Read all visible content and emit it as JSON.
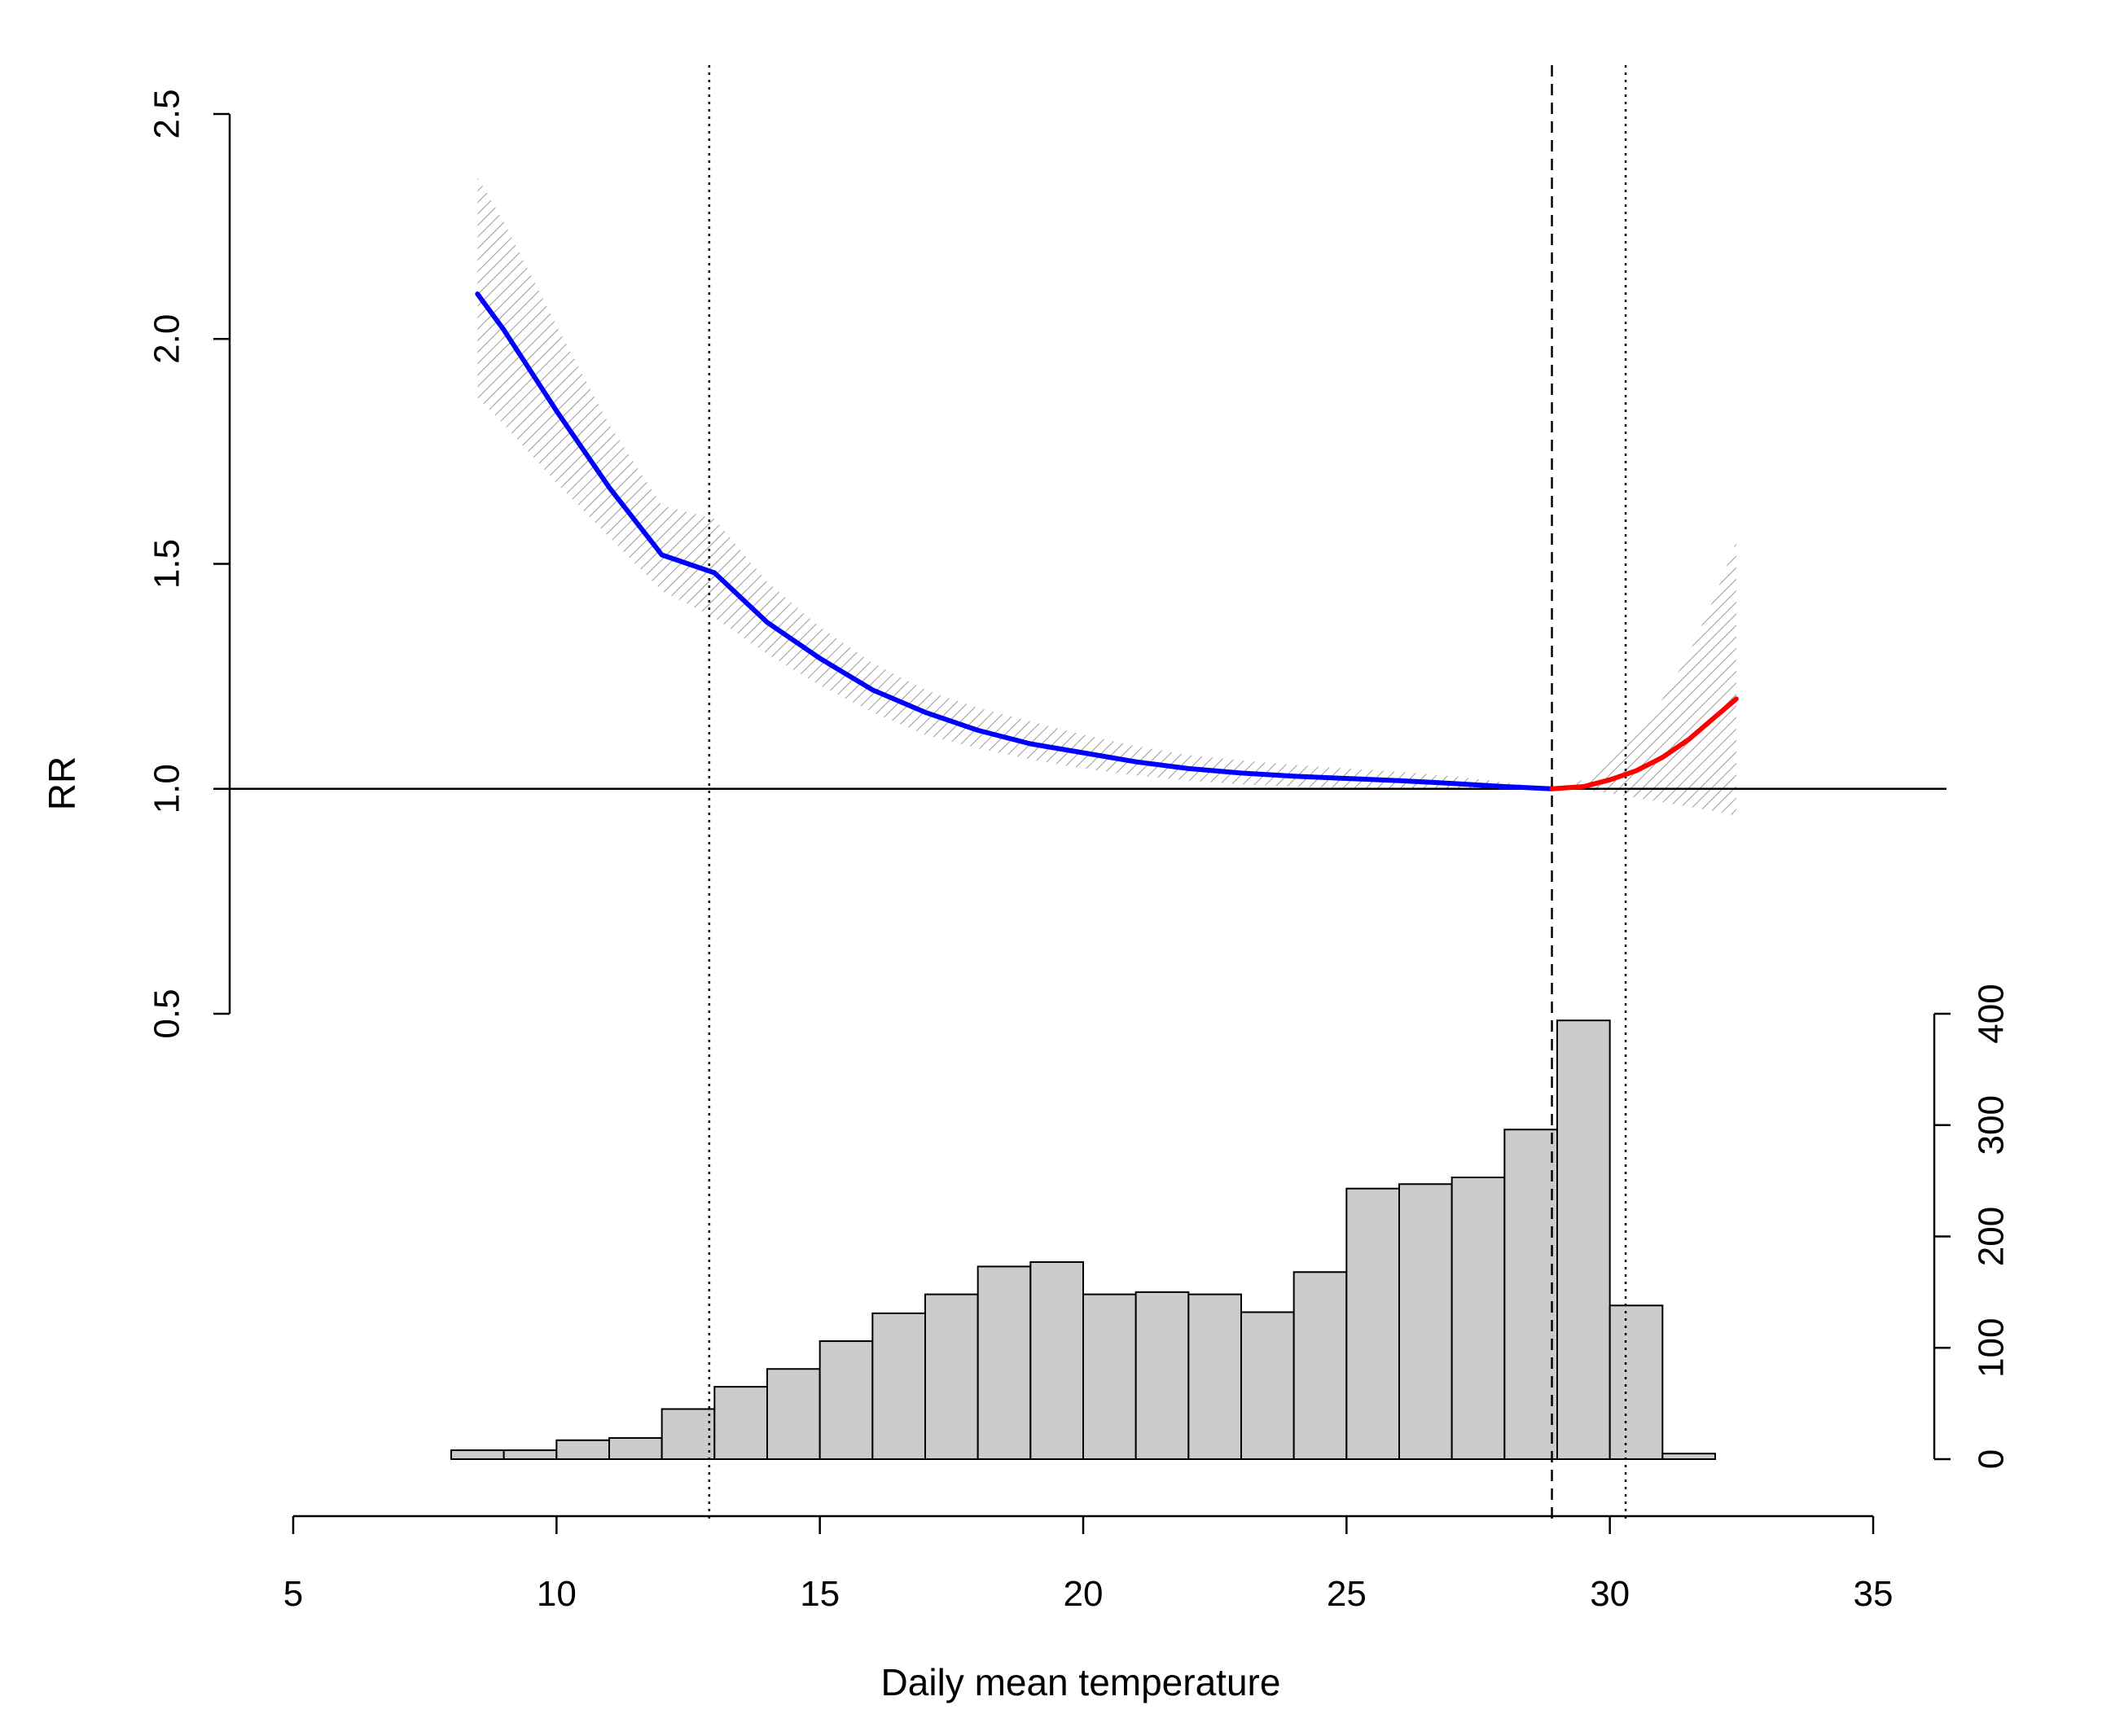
{
  "chart_data": {
    "type": "line",
    "xlabel": "Daily mean temperature",
    "ylabel": "RR",
    "xlim": [
      5,
      35
    ],
    "ylim": [
      0.5,
      2.5
    ],
    "x_ticks": [
      "5",
      "10",
      "15",
      "20",
      "25",
      "30",
      "35"
    ],
    "y_ticks": [
      "0.5",
      "1.0",
      "1.5",
      "2.0",
      "2.5"
    ],
    "reference_line_y": 1.0,
    "vertical_lines": [
      {
        "x": 12.9,
        "style": "dotted"
      },
      {
        "x": 28.9,
        "style": "dashed"
      },
      {
        "x": 30.3,
        "style": "dotted"
      }
    ],
    "series": [
      {
        "color": "#0000ff",
        "x": [
          8.5,
          9,
          10,
          11,
          12,
          13,
          14,
          15,
          16,
          17,
          18,
          19,
          20,
          21,
          22,
          23,
          24,
          25,
          26,
          27,
          28,
          28.9
        ],
        "y": [
          2.1,
          2.02,
          1.84,
          1.67,
          1.52,
          1.48,
          1.37,
          1.29,
          1.22,
          1.17,
          1.13,
          1.1,
          1.08,
          1.06,
          1.045,
          1.035,
          1.028,
          1.023,
          1.018,
          1.012,
          1.005,
          1.0
        ],
        "ci_lower": [
          1.87,
          1.81,
          1.68,
          1.56,
          1.44,
          1.38,
          1.3,
          1.23,
          1.17,
          1.12,
          1.09,
          1.065,
          1.045,
          1.03,
          1.018,
          1.01,
          1.005,
          1.002,
          1.0,
          0.998,
          0.998,
          1.0
        ],
        "ci_upper": [
          2.36,
          2.26,
          2.03,
          1.81,
          1.63,
          1.6,
          1.46,
          1.36,
          1.28,
          1.22,
          1.18,
          1.15,
          1.12,
          1.095,
          1.075,
          1.063,
          1.053,
          1.045,
          1.038,
          1.028,
          1.015,
          1.0
        ]
      },
      {
        "color": "#ff0000",
        "x": [
          28.9,
          29.5,
          30,
          30.5,
          31,
          31.5,
          32,
          32.4
        ],
        "y": [
          1.0,
          1.005,
          1.02,
          1.04,
          1.07,
          1.11,
          1.16,
          1.2
        ],
        "ci_lower": [
          1.0,
          0.998,
          0.99,
          0.98,
          0.97,
          0.96,
          0.95,
          0.94
        ],
        "ci_upper": [
          1.0,
          1.02,
          1.06,
          1.12,
          1.2,
          1.3,
          1.43,
          1.55
        ]
      }
    ],
    "histogram": {
      "ylim": [
        0,
        400
      ],
      "y_ticks": [
        "0",
        "100",
        "200",
        "300",
        "400"
      ],
      "bin_edges": [
        8,
        9,
        10,
        11,
        12,
        13,
        14,
        15,
        16,
        17,
        18,
        19,
        20,
        21,
        22,
        23,
        24,
        25,
        26,
        27,
        28,
        29,
        30,
        31,
        32,
        33
      ],
      "counts": [
        8,
        8,
        17,
        19,
        45,
        65,
        81,
        106,
        131,
        148,
        173,
        177,
        148,
        150,
        148,
        132,
        168,
        243,
        247,
        253,
        296,
        394,
        138,
        5,
        0
      ]
    }
  }
}
